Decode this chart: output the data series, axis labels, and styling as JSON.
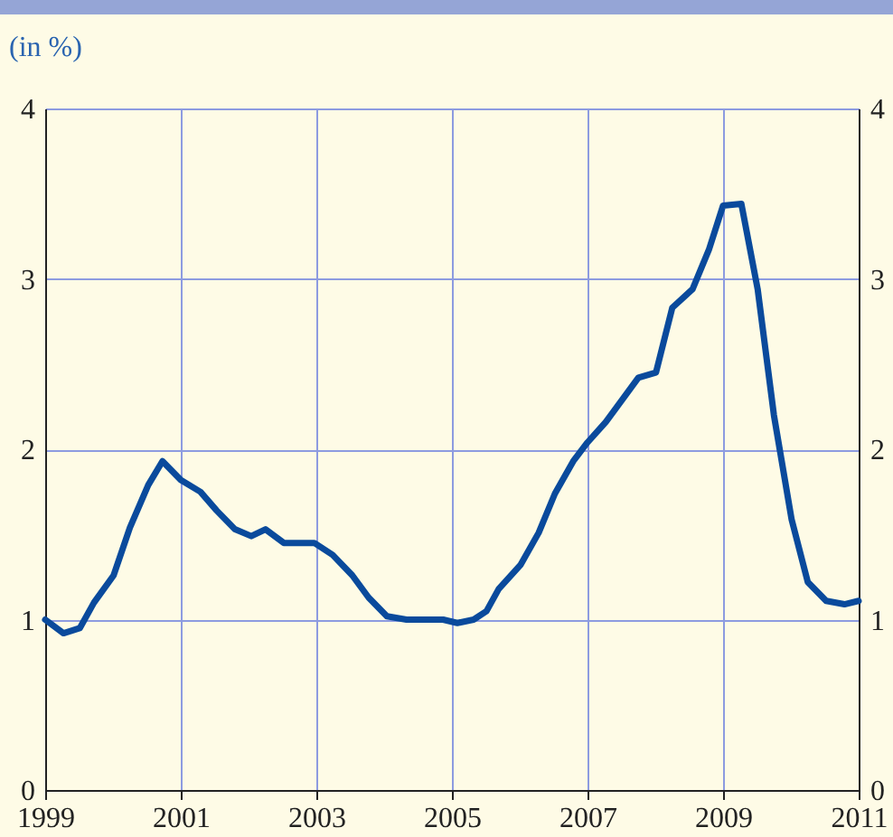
{
  "chart_data": {
    "type": "line",
    "ylabel": "(in %)",
    "x": [
      1999.0,
      1999.27,
      1999.51,
      1999.72,
      2000.01,
      2000.25,
      2000.52,
      2000.73,
      2001.0,
      2001.29,
      2001.53,
      2001.8,
      2002.04,
      2002.25,
      2002.52,
      2002.97,
      2003.24,
      2003.53,
      2003.77,
      2004.04,
      2004.33,
      2004.87,
      2005.08,
      2005.32,
      2005.51,
      2005.69,
      2006.01,
      2006.28,
      2006.52,
      2006.79,
      2007.0,
      2007.27,
      2007.53,
      2007.75,
      2008.01,
      2008.25,
      2008.55,
      2008.79,
      2009.0,
      2009.27,
      2009.51,
      2009.75,
      2010.01,
      2010.25,
      2010.52,
      2010.79,
      2011.0
    ],
    "series": [
      {
        "color": "#0a4a9c",
        "values": [
          1.0,
          0.92,
          0.95,
          1.1,
          1.26,
          1.54,
          1.79,
          1.93,
          1.82,
          1.75,
          1.64,
          1.53,
          1.49,
          1.53,
          1.45,
          1.45,
          1.38,
          1.26,
          1.13,
          1.02,
          1.0,
          1.0,
          0.98,
          1.0,
          1.05,
          1.18,
          1.32,
          1.51,
          1.74,
          1.93,
          2.04,
          2.16,
          2.3,
          2.42,
          2.45,
          2.83,
          2.94,
          3.17,
          3.43,
          3.44,
          2.94,
          2.2,
          1.59,
          1.22,
          1.11,
          1.09,
          1.11
        ]
      }
    ],
    "xlim": [
      1999,
      2011
    ],
    "xticks": [
      1999,
      2001,
      2003,
      2005,
      2007,
      2009,
      2011
    ],
    "ylim": [
      0,
      4
    ],
    "yticks": [
      0,
      1,
      2,
      3,
      4
    ],
    "y2lim": [
      0,
      4
    ],
    "y2ticks": [
      0,
      1,
      2,
      3,
      4
    ],
    "grid": true,
    "line_style": "solid",
    "marker": "none"
  }
}
